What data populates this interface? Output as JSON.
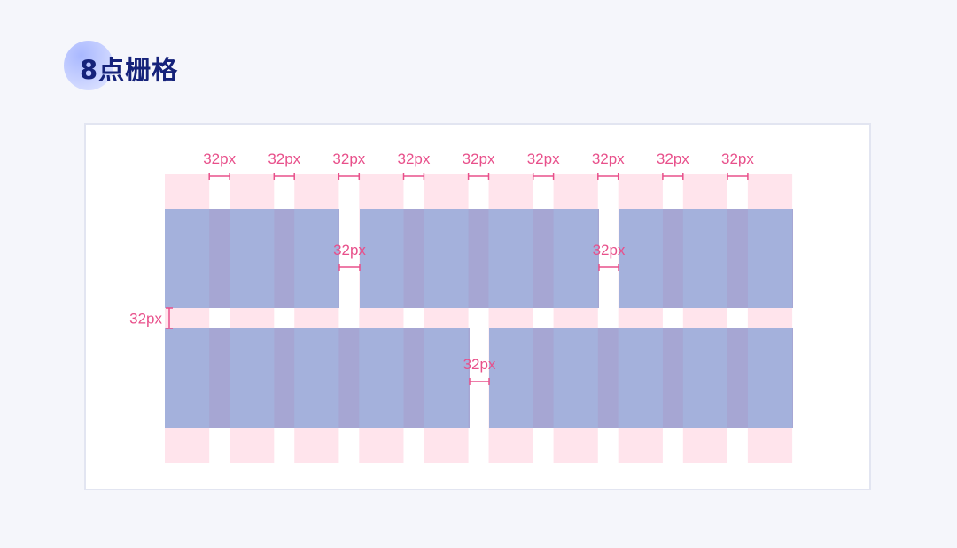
{
  "title": "8点栅格",
  "colors": {
    "column": "#ffe4ec",
    "block": "#a6a6d3",
    "overlap": "#a4b1dc",
    "dimension": "#e8508b",
    "title_text": "#15227a"
  },
  "grid": {
    "columns": 10,
    "gutter_label": "32px",
    "row_gap_label": "32px"
  },
  "column_gutter_labels": [
    "32px",
    "32px",
    "32px",
    "32px",
    "32px",
    "32px",
    "32px",
    "32px",
    "32px"
  ],
  "block_gap_labels": [
    "32px",
    "32px",
    "32px"
  ],
  "row_gap_label": "32px"
}
